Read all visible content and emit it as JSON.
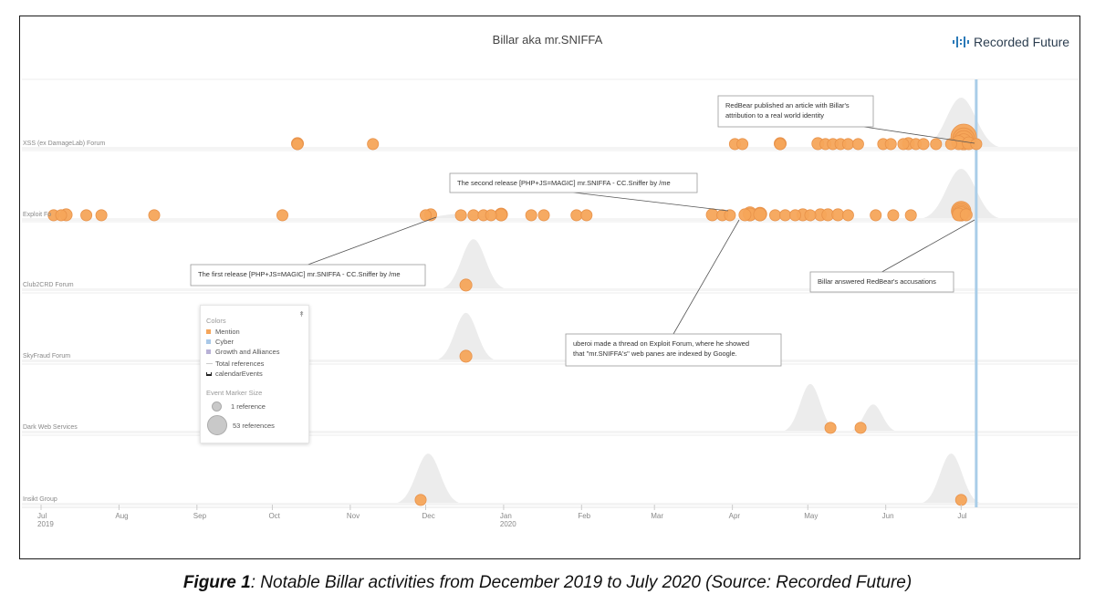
{
  "caption": {
    "bold": "Figure 1",
    "rest": ": Notable Billar activities from December 2019 to July 2020 (Source: Recorded Future)"
  },
  "logo": {
    "icon": "recorded-future-logo-icon",
    "text": "Recorded Future"
  },
  "legend": {
    "colors_heading": "Colors",
    "color_items": [
      {
        "label": "Mention",
        "color": "#f5a55a"
      },
      {
        "label": "Cyber",
        "color": "#a9c8e8"
      },
      {
        "label": "Growth and Alliances",
        "color": "#b8b1d6"
      }
    ],
    "total_references": "Total references",
    "calendar_events": "calendarEvents",
    "marker_heading": "Event Marker Size",
    "marker_small": "1 reference",
    "marker_large": "53 references",
    "collapse_icon": "chevron-double-down-icon"
  },
  "chart_data": {
    "type": "timeline",
    "title": "Billar aka mr.SNIFFA",
    "colors": {
      "marker": "#f5a55a",
      "marker_stroke": "#e8924a",
      "density": "#ececec",
      "today_line": "#a9cde8"
    },
    "x_ticks": [
      {
        "date": "2019-07-01",
        "label": "Jul",
        "year": "2019"
      },
      {
        "date": "2019-08-01",
        "label": "Aug",
        "year": ""
      },
      {
        "date": "2019-09-01",
        "label": "Sep",
        "year": ""
      },
      {
        "date": "2019-10-01",
        "label": "Oct",
        "year": ""
      },
      {
        "date": "2019-11-01",
        "label": "Nov",
        "year": ""
      },
      {
        "date": "2019-12-01",
        "label": "Dec",
        "year": ""
      },
      {
        "date": "2020-01-01",
        "label": "Jan",
        "year": "2020"
      },
      {
        "date": "2020-02-01",
        "label": "Feb",
        "year": ""
      },
      {
        "date": "2020-03-01",
        "label": "Mar",
        "year": ""
      },
      {
        "date": "2020-04-01",
        "label": "Apr",
        "year": ""
      },
      {
        "date": "2020-05-01",
        "label": "May",
        "year": ""
      },
      {
        "date": "2020-06-01",
        "label": "Jun",
        "year": ""
      },
      {
        "date": "2020-07-01",
        "label": "Jul",
        "year": ""
      }
    ],
    "x_range": [
      "2019-07-01",
      "2020-08-15"
    ],
    "highlight_date": "2020-07-07",
    "lanes": [
      {
        "name": "XSS (ex DamageLab) Forum",
        "density": [
          {
            "date": "2020-07-01",
            "amp": 1.0,
            "width": 16
          }
        ],
        "events": [
          {
            "date": "2019-10-11",
            "refs": 2
          },
          {
            "date": "2019-10-11",
            "refs": 3
          },
          {
            "date": "2019-11-10",
            "refs": 2
          },
          {
            "date": "2020-04-02",
            "refs": 2
          },
          {
            "date": "2020-04-05",
            "refs": 2
          },
          {
            "date": "2020-04-20",
            "refs": 3
          },
          {
            "date": "2020-04-20",
            "refs": 2
          },
          {
            "date": "2020-05-05",
            "refs": 3
          },
          {
            "date": "2020-05-08",
            "refs": 2
          },
          {
            "date": "2020-05-11",
            "refs": 2
          },
          {
            "date": "2020-05-14",
            "refs": 2
          },
          {
            "date": "2020-05-17",
            "refs": 2
          },
          {
            "date": "2020-05-21",
            "refs": 2
          },
          {
            "date": "2020-05-31",
            "refs": 2
          },
          {
            "date": "2020-06-03",
            "refs": 2
          },
          {
            "date": "2020-06-08",
            "refs": 2
          },
          {
            "date": "2020-06-10",
            "refs": 3
          },
          {
            "date": "2020-06-13",
            "refs": 2
          },
          {
            "date": "2020-06-16",
            "refs": 2
          },
          {
            "date": "2020-06-21",
            "refs": 2
          },
          {
            "date": "2020-06-27",
            "refs": 2
          },
          {
            "date": "2020-06-30",
            "refs": 6
          },
          {
            "date": "2020-07-02",
            "refs": 10
          },
          {
            "date": "2020-07-02",
            "refs": 18
          },
          {
            "date": "2020-07-02",
            "refs": 28
          },
          {
            "date": "2020-07-02",
            "refs": 53
          },
          {
            "date": "2020-07-04",
            "refs": 4
          },
          {
            "date": "2020-07-07",
            "refs": 2
          }
        ]
      },
      {
        "name": "Exploit Fo",
        "density": [
          {
            "date": "2019-12-15",
            "amp": 0.12,
            "width": 25
          },
          {
            "date": "2020-07-01",
            "amp": 1.0,
            "width": 16
          }
        ],
        "events": [
          {
            "date": "2019-07-06",
            "refs": 2
          },
          {
            "date": "2019-07-09",
            "refs": 2
          },
          {
            "date": "2019-07-11",
            "refs": 3
          },
          {
            "date": "2019-07-19",
            "refs": 2
          },
          {
            "date": "2019-07-25",
            "refs": 2
          },
          {
            "date": "2019-08-15",
            "refs": 2
          },
          {
            "date": "2019-10-05",
            "refs": 2
          },
          {
            "date": "2019-12-01",
            "refs": 2
          },
          {
            "date": "2019-12-03",
            "refs": 3
          },
          {
            "date": "2019-12-15",
            "refs": 2
          },
          {
            "date": "2019-12-20",
            "refs": 2
          },
          {
            "date": "2019-12-24",
            "refs": 2
          },
          {
            "date": "2019-12-27",
            "refs": 2
          },
          {
            "date": "2019-12-31",
            "refs": 3
          },
          {
            "date": "2019-12-31",
            "refs": 4
          },
          {
            "date": "2020-01-12",
            "refs": 2
          },
          {
            "date": "2020-01-17",
            "refs": 2
          },
          {
            "date": "2020-01-30",
            "refs": 2
          },
          {
            "date": "2020-02-03",
            "refs": 2
          },
          {
            "date": "2020-03-24",
            "refs": 3
          },
          {
            "date": "2020-03-28",
            "refs": 2
          },
          {
            "date": "2020-03-31",
            "refs": 2
          },
          {
            "date": "2020-04-06",
            "refs": 3
          },
          {
            "date": "2020-04-08",
            "refs": 4
          },
          {
            "date": "2020-04-08",
            "refs": 6
          },
          {
            "date": "2020-04-12",
            "refs": 4
          },
          {
            "date": "2020-04-12",
            "refs": 5
          },
          {
            "date": "2020-04-18",
            "refs": 2
          },
          {
            "date": "2020-04-22",
            "refs": 2
          },
          {
            "date": "2020-04-26",
            "refs": 2
          },
          {
            "date": "2020-04-29",
            "refs": 3
          },
          {
            "date": "2020-05-02",
            "refs": 2
          },
          {
            "date": "2020-05-06",
            "refs": 3
          },
          {
            "date": "2020-05-09",
            "refs": 3
          },
          {
            "date": "2020-05-13",
            "refs": 3
          },
          {
            "date": "2020-05-17",
            "refs": 2
          },
          {
            "date": "2020-05-28",
            "refs": 2
          },
          {
            "date": "2020-06-04",
            "refs": 2
          },
          {
            "date": "2020-06-11",
            "refs": 2
          },
          {
            "date": "2020-06-30",
            "refs": 4
          },
          {
            "date": "2020-07-01",
            "refs": 6
          },
          {
            "date": "2020-07-01",
            "refs": 9
          },
          {
            "date": "2020-07-01",
            "refs": 14
          },
          {
            "date": "2020-07-01",
            "refs": 20
          },
          {
            "date": "2020-07-03",
            "refs": 3
          }
        ]
      },
      {
        "name": "Club2CRD Forum",
        "density": [
          {
            "date": "2019-12-20",
            "amp": 1.0,
            "width": 13
          }
        ],
        "events": [
          {
            "date": "2019-12-17",
            "refs": 3
          }
        ]
      },
      {
        "name": "SkyFraud Forum",
        "density": [
          {
            "date": "2019-12-17",
            "amp": 0.95,
            "width": 12
          }
        ],
        "events": [
          {
            "date": "2019-12-17",
            "refs": 3
          }
        ]
      },
      {
        "name": "Dark Web Services",
        "density": [
          {
            "date": "2020-05-02",
            "amp": 0.95,
            "width": 11
          },
          {
            "date": "2020-05-27",
            "amp": 0.55,
            "width": 10
          }
        ],
        "events": [
          {
            "date": "2020-05-10",
            "refs": 2
          },
          {
            "date": "2020-05-22",
            "refs": 2
          }
        ]
      },
      {
        "name": "Insikt Group",
        "density": [
          {
            "date": "2019-12-02",
            "amp": 1.0,
            "width": 13
          },
          {
            "date": "2020-06-27",
            "amp": 1.0,
            "width": 12
          }
        ],
        "events": [
          {
            "date": "2019-11-29",
            "refs": 2
          },
          {
            "date": "2020-07-01",
            "refs": 2
          }
        ]
      }
    ],
    "annotations": [
      {
        "text": [
          "RedBear published an article with Billar's",
          "attribution to a real world identity"
        ],
        "target_lane": 0,
        "target_date": "2020-06-29",
        "pos": "above-right"
      },
      {
        "text": [
          "The second release [PHP+JS=MAGIC] mr.SNIFFA - CC.Sniffer by /me"
        ],
        "target_lane": 1,
        "target_date": "2020-03-27",
        "pos": "above"
      },
      {
        "text": [
          "The first release [PHP+JS=MAGIC] mr.SNIFFA - CC.Sniffer by /me"
        ],
        "target_lane": 1,
        "target_date": "2019-11-27",
        "pos": "below"
      },
      {
        "text": [
          "uberoi made a thread on Exploit Forum, where he showed",
          "that \"mr.SNIFFA's\" web panes are indexed by Google."
        ],
        "target_lane": 1,
        "target_date": "2020-04-02",
        "pos": "below"
      },
      {
        "text": [
          "Billar answered RedBear's accusations"
        ],
        "target_lane": 1,
        "target_date": "2020-06-30",
        "pos": "below"
      }
    ]
  }
}
